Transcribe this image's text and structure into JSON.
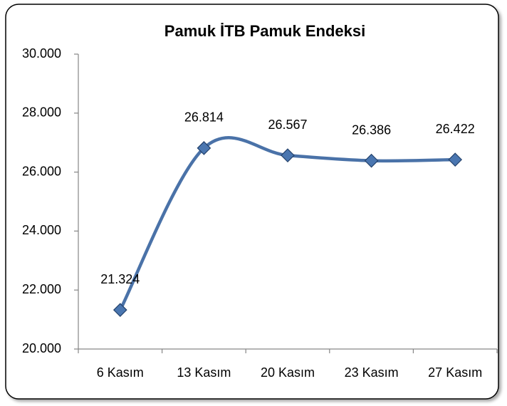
{
  "chart_data": {
    "type": "line",
    "title": "Pamuk İTB Pamuk Endeksi",
    "categories": [
      "6 Kasım",
      "13 Kasım",
      "20 Kasım",
      "23 Kasım",
      "27 Kasım"
    ],
    "values": [
      21324,
      26814,
      26567,
      26386,
      26422
    ],
    "value_labels": [
      "21.324",
      "26.814",
      "26.567",
      "26.386",
      "26.422"
    ],
    "color": "#4a72a8",
    "ylim": [
      20000,
      30000
    ],
    "yticks": [
      {
        "value": 20000,
        "label": "20.000"
      },
      {
        "value": 22000,
        "label": "22.000"
      },
      {
        "value": 24000,
        "label": "24.000"
      },
      {
        "value": 26000,
        "label": "26.000"
      },
      {
        "value": 28000,
        "label": "28.000"
      },
      {
        "value": 30000,
        "label": "30.000"
      }
    ],
    "grid": false
  }
}
